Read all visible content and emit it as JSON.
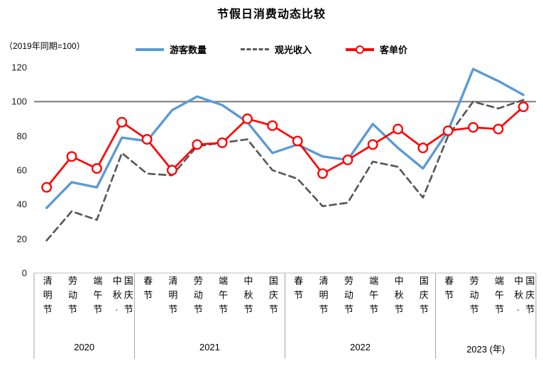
{
  "chart_data": {
    "type": "line",
    "title": "节假日消费动态比较",
    "note": "（2019年同期=100）",
    "legend_position": "top",
    "ylim": [
      0,
      120
    ],
    "yticks": [
      0,
      20,
      40,
      60,
      80,
      100,
      120
    ],
    "reference_line": 100,
    "x_groups": [
      {
        "year": "2020",
        "holidays": [
          "清明节",
          "劳动节",
          "端午节",
          "中秋·\n国庆节"
        ]
      },
      {
        "year": "2021",
        "holidays": [
          "春节",
          "清明节",
          "劳动节",
          "端午节",
          "中秋节",
          "国庆节"
        ]
      },
      {
        "year": "2022",
        "holidays": [
          "春节",
          "清明节",
          "劳动节",
          "端午节",
          "中秋节",
          "国庆节"
        ]
      },
      {
        "year": "2023 (年)",
        "holidays": [
          "春节",
          "劳动节",
          "端午节",
          "中秋·\n国庆节"
        ]
      }
    ],
    "series": [
      {
        "name": "游客数量",
        "color": "#5b9bd5",
        "style": "solid",
        "values": [
          38,
          53,
          50,
          79,
          77,
          95,
          103,
          98,
          88,
          70,
          75,
          68,
          66,
          87,
          73,
          61,
          83,
          119,
          112,
          104
        ]
      },
      {
        "name": "观光收入",
        "color": "#595959",
        "style": "dashed",
        "values": [
          19,
          36,
          31,
          70,
          58,
          57,
          74,
          76,
          78,
          60,
          55,
          39,
          41,
          65,
          62,
          44,
          80,
          100,
          96,
          101
        ]
      },
      {
        "name": "客单价",
        "color": "#ff0000",
        "style": "solid-marker",
        "marker_fill": "#ffffff",
        "values": [
          50,
          68,
          61,
          88,
          78,
          60,
          75,
          76,
          90,
          86,
          77,
          58,
          66,
          75,
          84,
          73,
          83,
          85,
          84,
          97
        ]
      }
    ]
  }
}
